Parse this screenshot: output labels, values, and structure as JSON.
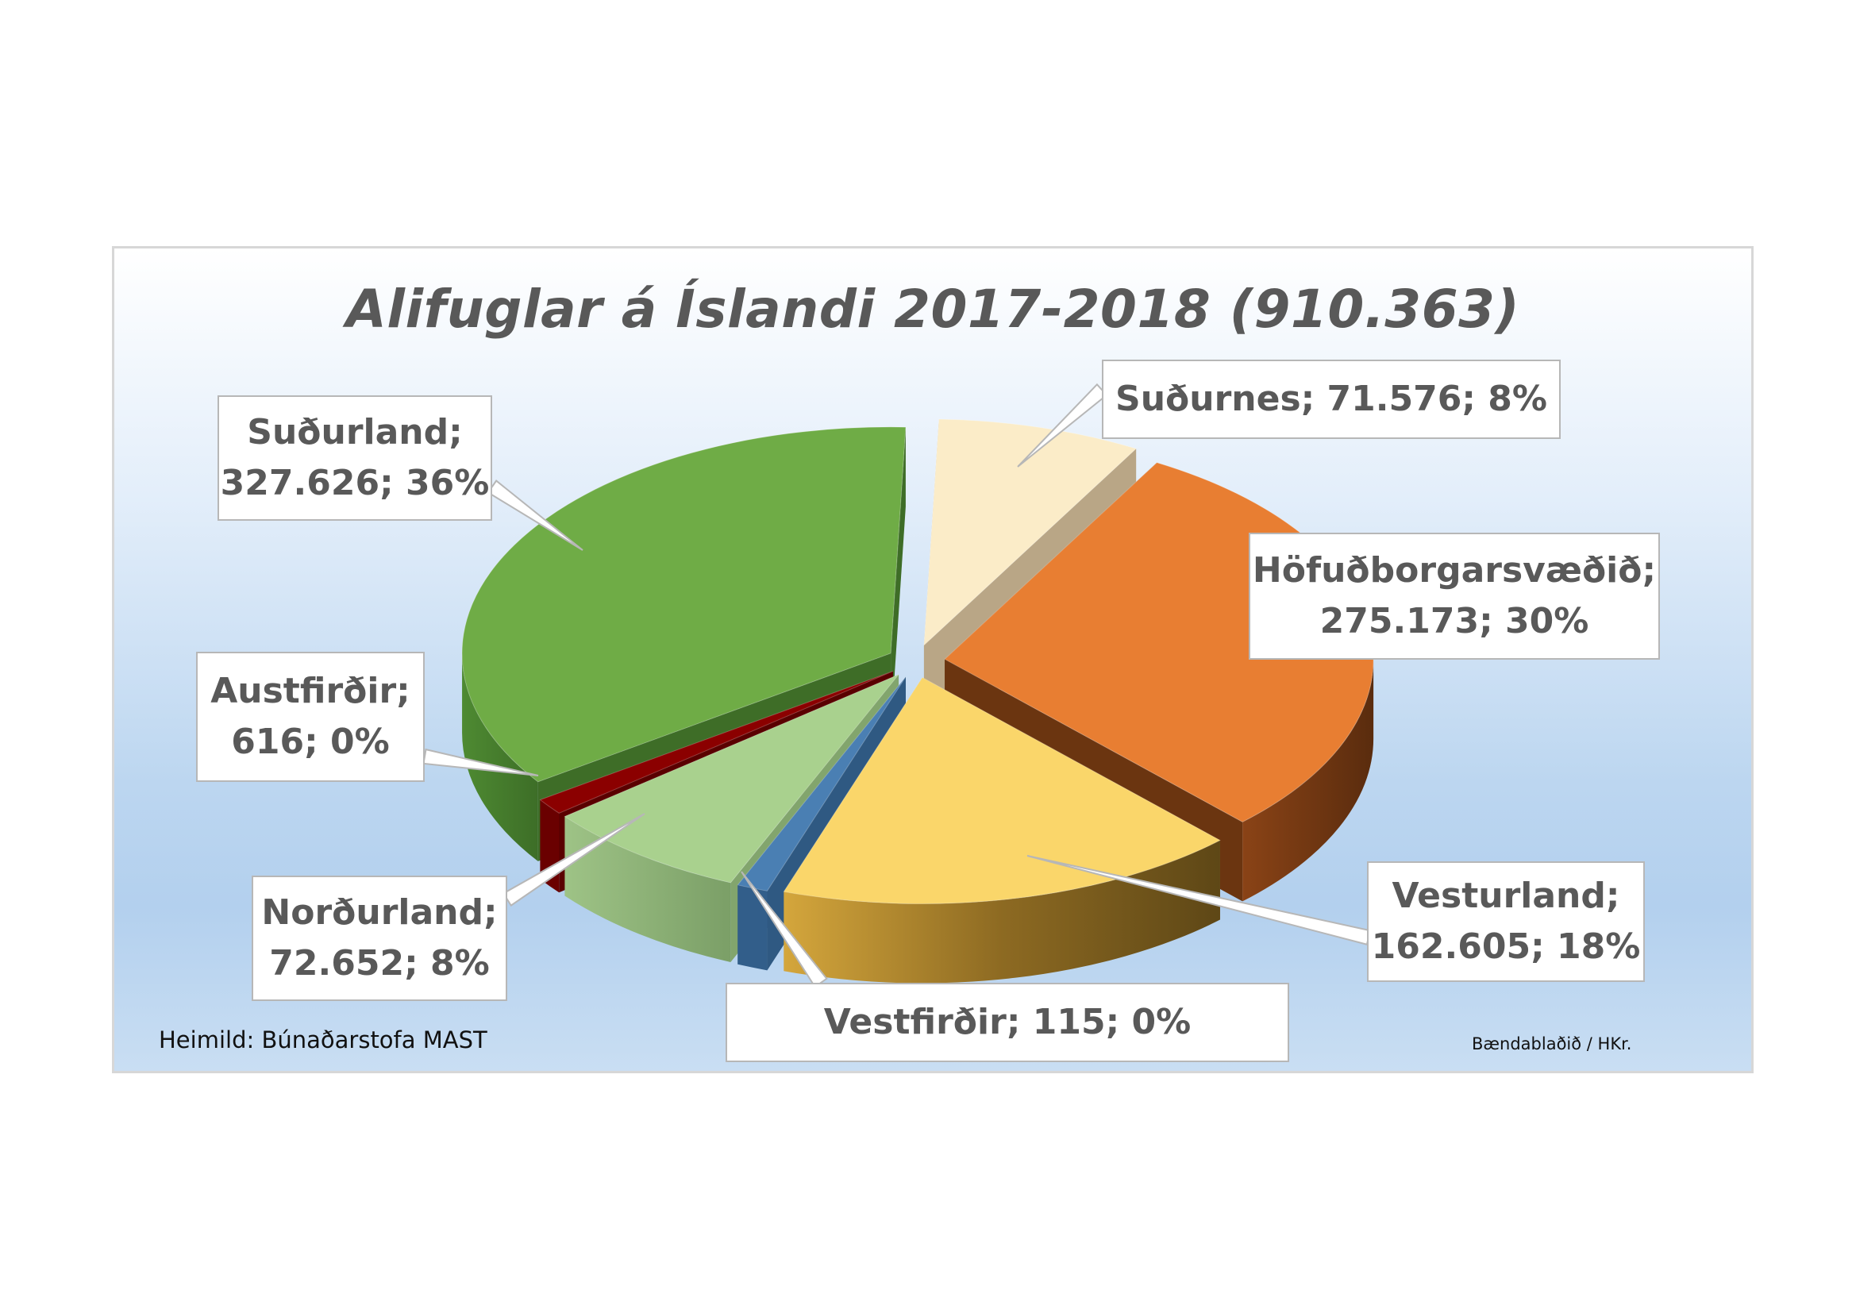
{
  "chart_data": {
    "type": "pie",
    "title": "Alifuglar á Íslandi 2017-2018 (910.363)",
    "slices": [
      {
        "name": "Suðurnes",
        "value": 71576,
        "percent": 8,
        "label_line1": "Suðurnes; 71.576; 8%",
        "label_line2": "",
        "color": "#fbecc8"
      },
      {
        "name": "Höfuðborgarsvæðið",
        "value": 275173,
        "percent": 30,
        "label_line1": "Höfuðborgarsvæðið;",
        "label_line2": "275.173; 30%",
        "color": "#e87e32"
      },
      {
        "name": "Vesturland",
        "value": 162605,
        "percent": 18,
        "label_line1": "Vesturland;",
        "label_line2": "162.605; 18%",
        "color": "#fad66a"
      },
      {
        "name": "Vestfirðir",
        "value": 115,
        "percent": 0,
        "label_line1": "Vestfirðir; 115; 0%",
        "label_line2": "",
        "color": "#4a7fb3"
      },
      {
        "name": "Norðurland",
        "value": 72652,
        "percent": 8,
        "label_line1": "Norðurland;",
        "label_line2": "72.652; 8%",
        "color": "#a9d18e"
      },
      {
        "name": "Austfirðir",
        "value": 616,
        "percent": 0,
        "label_line1": "Austfirðir;",
        "label_line2": "616; 0%",
        "color": "#8b0000"
      },
      {
        "name": "Suðurland",
        "value": 327626,
        "percent": 36,
        "label_line1": "Suðurland;",
        "label_line2": "327.626; 36%",
        "color": "#6fac46"
      }
    ],
    "total": 910363,
    "legend": "none"
  },
  "footer": {
    "source": "Heimild: Búnaðarstofa MAST",
    "credit": "Bændablaðið / HKr."
  }
}
